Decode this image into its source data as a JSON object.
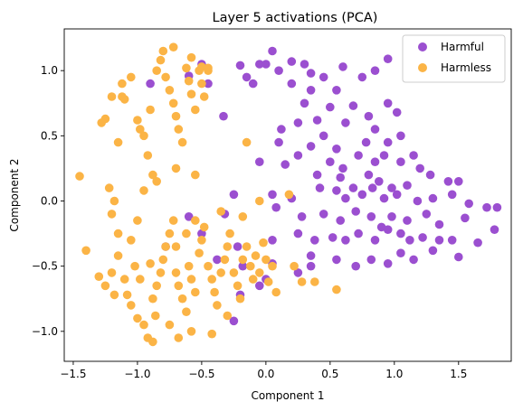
{
  "chart_data": {
    "type": "scatter",
    "title": "Layer 5 activations (PCA)",
    "xlabel": "Component 1",
    "ylabel": "Component 2",
    "xlim": [
      -1.57,
      1.91
    ],
    "ylim": [
      -1.23,
      1.32
    ],
    "xticks": [
      -1.5,
      -1.0,
      -0.5,
      0.0,
      0.5,
      1.0,
      1.5
    ],
    "xtick_labels": [
      "−1.5",
      "−1.0",
      "−0.5",
      "0.0",
      "0.5",
      "1.0",
      "1.5"
    ],
    "yticks": [
      -1.0,
      -0.5,
      0.0,
      0.5,
      1.0
    ],
    "ytick_labels": [
      "−1.0",
      "−0.5",
      "0.0",
      "0.5",
      "1.0"
    ],
    "grid": false,
    "legend_position": "top-right",
    "series": [
      {
        "name": "Harmful",
        "color": "#9b4fd0",
        "points": [
          [
            -0.9,
            0.9
          ],
          [
            -0.6,
            0.96
          ],
          [
            -0.5,
            1.05
          ],
          [
            -0.45,
            0.9
          ],
          [
            -0.33,
            0.65
          ],
          [
            -0.2,
            1.04
          ],
          [
            -0.15,
            0.95
          ],
          [
            -0.1,
            0.9
          ],
          [
            -0.05,
            1.05
          ],
          [
            0.0,
            1.05
          ],
          [
            0.05,
            1.15
          ],
          [
            0.1,
            1.0
          ],
          [
            0.2,
            1.07
          ],
          [
            0.3,
            1.05
          ],
          [
            0.35,
            0.98
          ],
          [
            0.45,
            0.95
          ],
          [
            0.2,
            0.9
          ],
          [
            0.35,
            0.85
          ],
          [
            0.55,
            0.85
          ],
          [
            0.6,
            1.03
          ],
          [
            0.75,
            0.95
          ],
          [
            0.85,
            1.0
          ],
          [
            0.95,
            1.09
          ],
          [
            0.3,
            0.75
          ],
          [
            0.5,
            0.72
          ],
          [
            0.68,
            0.73
          ],
          [
            0.8,
            0.65
          ],
          [
            0.95,
            0.75
          ],
          [
            1.02,
            0.68
          ],
          [
            0.12,
            0.55
          ],
          [
            0.25,
            0.6
          ],
          [
            0.4,
            0.62
          ],
          [
            0.45,
            0.5
          ],
          [
            0.62,
            0.6
          ],
          [
            0.78,
            0.45
          ],
          [
            0.85,
            0.55
          ],
          [
            0.95,
            0.45
          ],
          [
            1.05,
            0.5
          ],
          [
            0.1,
            0.45
          ],
          [
            0.25,
            0.35
          ],
          [
            0.35,
            0.42
          ],
          [
            0.5,
            0.3
          ],
          [
            0.55,
            0.4
          ],
          [
            0.6,
            0.25
          ],
          [
            0.72,
            0.35
          ],
          [
            0.85,
            0.3
          ],
          [
            0.92,
            0.35
          ],
          [
            1.05,
            0.3
          ],
          [
            1.15,
            0.35
          ],
          [
            1.2,
            0.25
          ],
          [
            -0.05,
            0.3
          ],
          [
            0.15,
            0.28
          ],
          [
            0.4,
            0.2
          ],
          [
            0.58,
            0.18
          ],
          [
            0.68,
            0.1
          ],
          [
            0.8,
            0.2
          ],
          [
            0.88,
            0.15
          ],
          [
            0.98,
            0.1
          ],
          [
            1.1,
            0.12
          ],
          [
            1.28,
            0.2
          ],
          [
            1.42,
            0.15
          ],
          [
            1.5,
            0.15
          ],
          [
            -0.25,
            0.05
          ],
          [
            0.05,
            0.05
          ],
          [
            0.2,
            0.02
          ],
          [
            0.42,
            0.1
          ],
          [
            0.55,
            0.08
          ],
          [
            0.62,
            0.02
          ],
          [
            0.75,
            0.05
          ],
          [
            0.83,
            0.1
          ],
          [
            0.92,
            0.02
          ],
          [
            1.02,
            0.05
          ],
          [
            1.18,
            0.0
          ],
          [
            1.3,
            0.02
          ],
          [
            1.45,
            0.05
          ],
          [
            1.58,
            -0.02
          ],
          [
            1.72,
            -0.05
          ],
          [
            1.8,
            -0.05
          ],
          [
            -0.6,
            -0.12
          ],
          [
            -0.32,
            -0.1
          ],
          [
            0.08,
            -0.05
          ],
          [
            0.28,
            -0.12
          ],
          [
            0.45,
            -0.1
          ],
          [
            0.58,
            -0.15
          ],
          [
            0.7,
            -0.08
          ],
          [
            0.82,
            -0.12
          ],
          [
            0.9,
            -0.2
          ],
          [
            0.98,
            -0.12
          ],
          [
            1.1,
            -0.15
          ],
          [
            1.25,
            -0.1
          ],
          [
            1.35,
            -0.18
          ],
          [
            1.55,
            -0.13
          ],
          [
            -0.78,
            -0.35
          ],
          [
            -0.5,
            -0.25
          ],
          [
            -0.22,
            -0.35
          ],
          [
            0.05,
            -0.3
          ],
          [
            0.25,
            -0.25
          ],
          [
            0.38,
            -0.3
          ],
          [
            0.52,
            -0.28
          ],
          [
            0.62,
            -0.3
          ],
          [
            0.72,
            -0.25
          ],
          [
            0.85,
            -0.3
          ],
          [
            0.95,
            -0.22
          ],
          [
            1.05,
            -0.25
          ],
          [
            1.12,
            -0.3
          ],
          [
            1.22,
            -0.28
          ],
          [
            1.35,
            -0.3
          ],
          [
            1.45,
            -0.3
          ],
          [
            1.65,
            -0.32
          ],
          [
            1.78,
            -0.22
          ],
          [
            -0.38,
            -0.45
          ],
          [
            -0.18,
            -0.5
          ],
          [
            0.05,
            -0.48
          ],
          [
            0.35,
            -0.42
          ],
          [
            0.55,
            -0.45
          ],
          [
            0.7,
            -0.5
          ],
          [
            0.82,
            -0.45
          ],
          [
            0.95,
            -0.48
          ],
          [
            1.05,
            -0.4
          ],
          [
            1.15,
            -0.45
          ],
          [
            1.3,
            -0.38
          ],
          [
            1.5,
            -0.43
          ],
          [
            -0.2,
            -0.72
          ],
          [
            -0.05,
            -0.65
          ],
          [
            0.0,
            -0.6
          ],
          [
            0.25,
            -0.55
          ],
          [
            0.35,
            -0.5
          ],
          [
            -0.25,
            -0.92
          ]
        ]
      },
      {
        "name": "Harmless",
        "color": "#fbb446",
        "points": [
          [
            -1.45,
            0.19
          ],
          [
            -1.4,
            -0.38
          ],
          [
            -1.28,
            0.6
          ],
          [
            -1.25,
            0.63
          ],
          [
            -1.22,
            0.1
          ],
          [
            -1.2,
            -0.1
          ],
          [
            -1.18,
            0.0
          ],
          [
            -1.15,
            0.45
          ],
          [
            -1.12,
            0.8
          ],
          [
            -1.1,
            0.78
          ],
          [
            -1.05,
            0.95
          ],
          [
            -1.02,
            -0.5
          ],
          [
            -0.98,
            0.55
          ],
          [
            -0.95,
            0.5
          ],
          [
            -0.92,
            0.35
          ],
          [
            -0.88,
            0.2
          ],
          [
            -0.85,
            1.0
          ],
          [
            -0.82,
            1.08
          ],
          [
            -0.8,
            1.15
          ],
          [
            -0.78,
            0.95
          ],
          [
            -0.75,
            0.85
          ],
          [
            -0.72,
            0.75
          ],
          [
            -0.7,
            0.65
          ],
          [
            -0.68,
            0.55
          ],
          [
            -0.65,
            0.45
          ],
          [
            -0.62,
            1.02
          ],
          [
            -0.6,
            0.92
          ],
          [
            -0.58,
            0.82
          ],
          [
            -0.55,
            0.7
          ],
          [
            -0.52,
            1.0
          ],
          [
            -0.5,
            0.9
          ],
          [
            -0.48,
            0.8
          ],
          [
            -0.45,
            1.0
          ],
          [
            -0.85,
            0.15
          ],
          [
            -0.95,
            0.08
          ],
          [
            -1.0,
            -0.15
          ],
          [
            -1.05,
            -0.3
          ],
          [
            -1.15,
            -0.25
          ],
          [
            -1.2,
            -0.55
          ],
          [
            -1.25,
            -0.65
          ],
          [
            -1.18,
            -0.72
          ],
          [
            -1.1,
            -0.6
          ],
          [
            -1.05,
            -0.8
          ],
          [
            -1.0,
            -0.9
          ],
          [
            -0.95,
            -0.95
          ],
          [
            -0.92,
            -1.05
          ],
          [
            -0.88,
            -0.75
          ],
          [
            -0.85,
            -0.65
          ],
          [
            -0.82,
            -0.55
          ],
          [
            -0.8,
            -0.45
          ],
          [
            -0.78,
            -0.35
          ],
          [
            -0.75,
            -0.25
          ],
          [
            -0.72,
            -0.15
          ],
          [
            -0.7,
            -0.55
          ],
          [
            -0.68,
            -0.65
          ],
          [
            -0.65,
            -0.75
          ],
          [
            -0.62,
            -0.85
          ],
          [
            -0.6,
            -0.5
          ],
          [
            -0.58,
            -0.6
          ],
          [
            -0.55,
            -0.7
          ],
          [
            -0.52,
            -0.4
          ],
          [
            -0.5,
            -0.3
          ],
          [
            -0.48,
            -0.2
          ],
          [
            -0.45,
            -0.5
          ],
          [
            -0.42,
            -0.6
          ],
          [
            -0.4,
            -0.7
          ],
          [
            -0.38,
            -0.8
          ],
          [
            -0.35,
            -0.55
          ],
          [
            -0.32,
            -0.45
          ],
          [
            -0.3,
            -0.35
          ],
          [
            -0.28,
            -0.25
          ],
          [
            -0.25,
            -0.55
          ],
          [
            -0.22,
            -0.65
          ],
          [
            -0.2,
            -0.75
          ],
          [
            -0.18,
            -0.45
          ],
          [
            -0.15,
            -0.35
          ],
          [
            -0.12,
            -0.5
          ],
          [
            -0.1,
            -0.6
          ],
          [
            -0.08,
            -0.42
          ],
          [
            -0.05,
            -0.55
          ],
          [
            -0.02,
            -0.32
          ],
          [
            0.0,
            -0.45
          ],
          [
            0.02,
            -0.62
          ],
          [
            0.05,
            -0.5
          ],
          [
            0.08,
            -0.7
          ],
          [
            -1.3,
            -0.58
          ],
          [
            -1.15,
            -0.42
          ],
          [
            -1.08,
            -0.72
          ],
          [
            -0.98,
            -0.6
          ],
          [
            -0.9,
            -0.48
          ],
          [
            -0.86,
            -0.88
          ],
          [
            -0.75,
            -0.95
          ],
          [
            -0.68,
            -1.05
          ],
          [
            -0.58,
            -1.0
          ],
          [
            -0.42,
            -1.02
          ],
          [
            -0.3,
            -0.88
          ],
          [
            -0.88,
            -1.08
          ],
          [
            -0.7,
            -0.35
          ],
          [
            -0.62,
            -0.25
          ],
          [
            -0.55,
            -0.15
          ],
          [
            -0.35,
            -0.08
          ],
          [
            -0.18,
            -0.12
          ],
          [
            0.22,
            -0.5
          ],
          [
            0.28,
            -0.62
          ],
          [
            0.38,
            -0.62
          ],
          [
            0.55,
            -0.68
          ],
          [
            -0.05,
            0.0
          ],
          [
            0.18,
            0.05
          ],
          [
            -0.15,
            0.45
          ],
          [
            -0.55,
            0.2
          ],
          [
            -0.7,
            0.25
          ],
          [
            -1.0,
            0.62
          ],
          [
            -0.9,
            0.7
          ],
          [
            -1.2,
            0.8
          ],
          [
            -1.12,
            0.9
          ],
          [
            -0.72,
            1.18
          ],
          [
            -0.58,
            1.1
          ],
          [
            -0.5,
            1.03
          ],
          [
            -0.45,
            1.02
          ]
        ]
      }
    ]
  }
}
